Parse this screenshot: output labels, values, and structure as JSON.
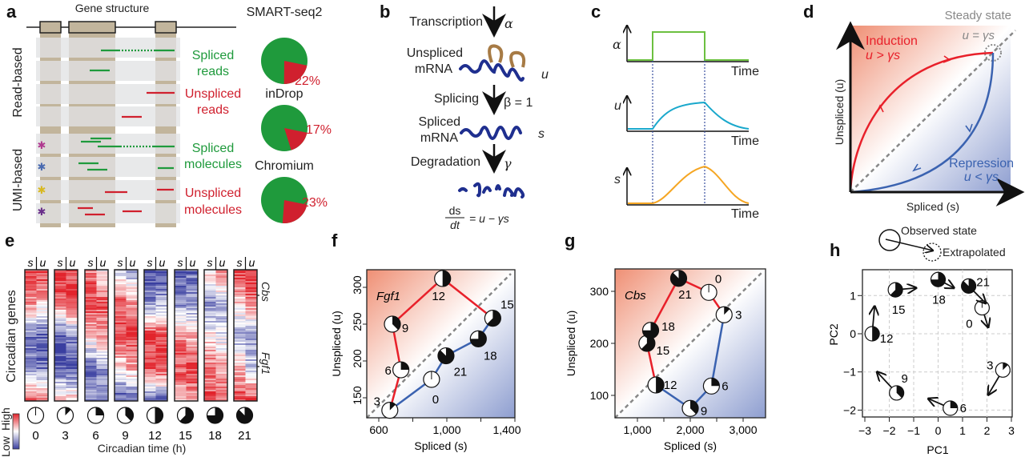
{
  "panels": {
    "a": "a",
    "b": "b",
    "c": "c",
    "d": "d",
    "e": "e",
    "f": "f",
    "g": "g",
    "h": "h"
  },
  "a": {
    "title": "Gene structure",
    "side_read": "Read-based",
    "side_umi": "UMI-based",
    "spliced_reads": [
      "Spliced",
      "reads"
    ],
    "unspliced_reads": [
      "Unspliced",
      "reads"
    ],
    "spliced_mol": [
      "Spliced",
      "molecules"
    ],
    "unspliced_mol": [
      "Unspliced",
      "molecules"
    ],
    "pies": [
      {
        "name": "SMART-seq2",
        "unspliced_pct": 22,
        "label": "22%"
      },
      {
        "name": "inDrop",
        "unspliced_pct": 17,
        "label": "17%"
      },
      {
        "name": "Chromium",
        "unspliced_pct": 23,
        "label": "23%"
      }
    ],
    "colors": {
      "spliced": "#1f9a3c",
      "unspliced": "#d0202e",
      "exon": "#c2b59c"
    }
  },
  "b": {
    "transcription": "Transcription",
    "alpha": "α",
    "unspliced": [
      "Unspliced",
      "mRNA"
    ],
    "u": "u",
    "splicing": "Splicing",
    "beta": "β = 1",
    "spliced": [
      "Spliced",
      "mRNA"
    ],
    "s": "s",
    "degradation": "Degradation",
    "gamma": "γ",
    "eq_num": "ds",
    "eq_den": "dt",
    "eq_rhs": "= u − γs"
  },
  "c": {
    "alpha": "α",
    "u": "u",
    "s": "s",
    "time": "Time"
  },
  "d": {
    "steady": "Steady state",
    "steady_eq": "u = γs",
    "induction": "Induction",
    "induction_eq": "u > γs",
    "repression": "Repression",
    "repression_eq": "u < γs",
    "xlabel": "Spliced (s)",
    "ylabel": "Unspliced (u)"
  },
  "e": {
    "header_s": "s",
    "header_u": "u",
    "ylabel": "Circadian genes",
    "xlabel": "Circadian time (h)",
    "gene1": "Cbs",
    "gene2": "Fgf1",
    "colorbar_low": "Low",
    "colorbar_high": "High",
    "times": [
      "0",
      "3",
      "6",
      "9",
      "12",
      "15",
      "18",
      "21"
    ]
  },
  "chart_data": [
    {
      "panel": "e",
      "type": "heatmap",
      "columns": [
        "0",
        "3",
        "6",
        "9",
        "12",
        "15",
        "18",
        "21"
      ],
      "note_scale": "Low (blue) to High (red)",
      "profiles_s": [
        [
          0.9,
          0.5,
          -0.7,
          -0.6,
          0.7
        ],
        [
          0.9,
          0.7,
          -0.9,
          -0.9,
          0.4
        ],
        [
          0.6,
          0.9,
          0.2,
          -0.7,
          -0.6
        ],
        [
          -0.3,
          0.8,
          0.8,
          0.1,
          -0.9
        ],
        [
          -1,
          -0.6,
          0.9,
          0.8,
          -0.9
        ],
        [
          -0.9,
          -0.6,
          0.6,
          0.8,
          0.2
        ],
        [
          0.2,
          -0.6,
          0.1,
          0.6,
          0.8
        ],
        [
          0.9,
          0.2,
          -0.5,
          0.3,
          0.9
        ]
      ],
      "profiles_u": [
        [
          0.9,
          0.3,
          -0.8,
          -0.7,
          0.6
        ],
        [
          0.9,
          0.8,
          -0.6,
          -0.9,
          0.3
        ],
        [
          0.1,
          0.8,
          0.4,
          -0.5,
          -0.6
        ],
        [
          -0.5,
          0.5,
          0.9,
          0.4,
          -0.8
        ],
        [
          -0.9,
          -0.4,
          0.9,
          0.9,
          -0.8
        ],
        [
          -0.7,
          -0.5,
          0.3,
          0.9,
          0.4
        ],
        [
          0.5,
          -0.3,
          -0.2,
          0.4,
          0.7
        ],
        [
          0.9,
          0.6,
          -0.6,
          -0.2,
          0.8
        ]
      ]
    },
    {
      "panel": "f",
      "type": "scatter",
      "gene": "Fgf1",
      "xlabel": "Spliced (s)",
      "ylabel": "Unspliced (u)",
      "xticks": [
        "600",
        "1,000",
        "1,400"
      ],
      "yticks": [
        "150",
        "200",
        "250",
        "300"
      ],
      "points": [
        {
          "t": "0",
          "x": 910,
          "y": 175
        },
        {
          "t": "3",
          "x": 665,
          "y": 133
        },
        {
          "t": "6",
          "x": 730,
          "y": 188
        },
        {
          "t": "9",
          "x": 680,
          "y": 250
        },
        {
          "t": "12",
          "x": 975,
          "y": 312
        },
        {
          "t": "15",
          "x": 1270,
          "y": 258
        },
        {
          "t": "18",
          "x": 1185,
          "y": 230
        },
        {
          "t": "21",
          "x": 995,
          "y": 207
        }
      ]
    },
    {
      "panel": "g",
      "type": "scatter",
      "gene": "Cbs",
      "xlabel": "Spliced (s)",
      "ylabel": "Unspliced (u)",
      "xticks": [
        "1,000",
        "2,000",
        "3,000"
      ],
      "yticks": [
        "100",
        "200",
        "300"
      ],
      "points": [
        {
          "t": "0",
          "x": 2350,
          "y": 298
        },
        {
          "t": "3",
          "x": 2640,
          "y": 255
        },
        {
          "t": "6",
          "x": 2400,
          "y": 118
        },
        {
          "t": "9",
          "x": 2000,
          "y": 75
        },
        {
          "t": "12",
          "x": 1350,
          "y": 120
        },
        {
          "t": "15",
          "x": 1180,
          "y": 200
        },
        {
          "t": "18",
          "x": 1250,
          "y": 225
        },
        {
          "t": "21",
          "x": 1780,
          "y": 325
        }
      ]
    },
    {
      "panel": "h",
      "type": "scatter",
      "xlabel": "PC1",
      "ylabel": "PC2",
      "xticks": [
        "−3",
        "−2",
        "−1",
        "0",
        "1",
        "2",
        "3"
      ],
      "yticks": [
        "−2",
        "−1",
        "0",
        "1"
      ],
      "legend_observed": "Observed state",
      "legend_extrapolated": "Extrapolated",
      "points": [
        {
          "t": "0",
          "x": 1.8,
          "y": 0.68,
          "ex": 2.05,
          "ey": 0.17
        },
        {
          "t": "3",
          "x": 2.65,
          "y": -0.95,
          "ex": 2.05,
          "ey": -1.6
        },
        {
          "t": "6",
          "x": 0.5,
          "y": -1.95,
          "ex": -0.4,
          "ey": -1.7
        },
        {
          "t": "9",
          "x": -1.7,
          "y": -1.55,
          "ex": -2.5,
          "ey": -1.0
        },
        {
          "t": "12",
          "x": -2.7,
          "y": 0,
          "ex": -2.6,
          "ey": 0.72
        },
        {
          "t": "15",
          "x": -1.75,
          "y": 1.15,
          "ex": -0.9,
          "ey": 1.2
        },
        {
          "t": "18",
          "x": 0,
          "y": 1.42,
          "ex": 0.65,
          "ey": 1.2
        },
        {
          "t": "21",
          "x": 1.25,
          "y": 1.25,
          "ex": 1.95,
          "ey": 0.8
        }
      ]
    }
  ],
  "colors": {
    "red": "#e8202a",
    "blue": "#3a62b0",
    "green_step": "#6cc040",
    "cyan": "#1aa8cc",
    "orange": "#f5a623"
  }
}
